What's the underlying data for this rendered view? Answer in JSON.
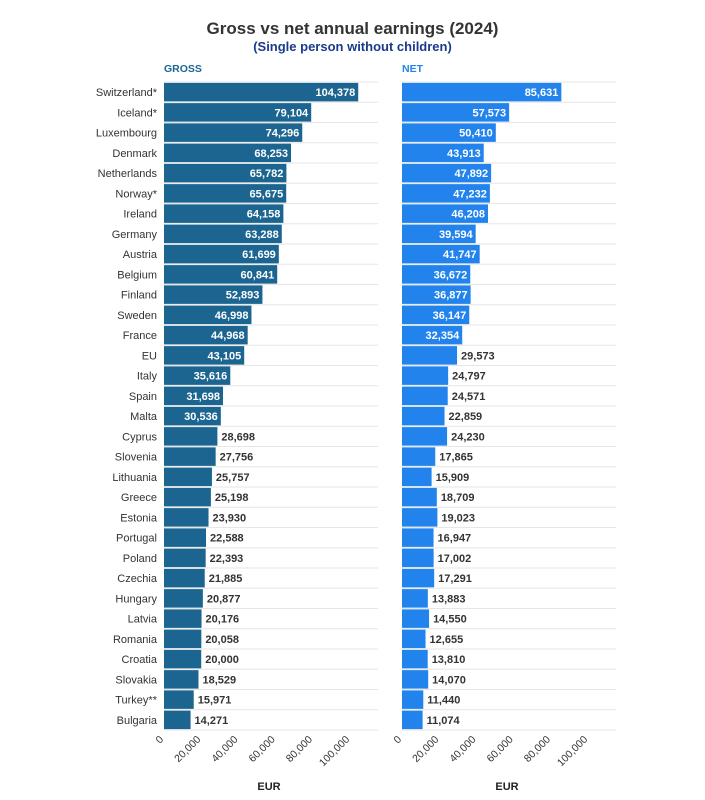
{
  "chart_data": {
    "type": "bar",
    "title": "Gross vs net annual earnings (2024)",
    "subtitle": "(Single person without children)",
    "categories": [
      "Switzerland*",
      "Iceland*",
      "Luxembourg",
      "Denmark",
      "Netherlands",
      "Norway*",
      "Ireland",
      "Germany",
      "Austria",
      "Belgium",
      "Finland",
      "Sweden",
      "France",
      "EU",
      "Italy",
      "Spain",
      "Malta",
      "Cyprus",
      "Slovenia",
      "Lithuania",
      "Greece",
      "Estonia",
      "Portugal",
      "Poland",
      "Czechia",
      "Hungary",
      "Latvia",
      "Romania",
      "Croatia",
      "Slovakia",
      "Turkey**",
      "Bulgaria"
    ],
    "panels": [
      {
        "name": "GROSS",
        "color": "#1b6590",
        "xlabel": "EUR",
        "xlim": [
          0,
          115000
        ],
        "ticks": [
          0,
          20000,
          40000,
          60000,
          80000,
          100000
        ],
        "tick_labels": [
          "0",
          "20,000",
          "40,000",
          "60,000",
          "80,000",
          "100,000"
        ],
        "values": [
          104378,
          79104,
          74296,
          68253,
          65782,
          65675,
          64158,
          63288,
          61699,
          60841,
          52893,
          46998,
          44968,
          43105,
          35616,
          31698,
          30536,
          28698,
          27756,
          25757,
          25198,
          23930,
          22588,
          22393,
          21885,
          20877,
          20176,
          20058,
          20000,
          18529,
          15971,
          14271
        ],
        "labels": [
          "104,378",
          "79,104",
          "74,296",
          "68,253",
          "65,782",
          "65,675",
          "64,158",
          "63,288",
          "61,699",
          "60,841",
          "52,893",
          "46,998",
          "44,968",
          "43,105",
          "35,616",
          "31,698",
          "30,536",
          "28,698",
          "27,756",
          "25,757",
          "25,198",
          "23,930",
          "22,588",
          "22,393",
          "21,885",
          "20,877",
          "20,176",
          "20,058",
          "20,000",
          "18,529",
          "15,971",
          "14,271"
        ]
      },
      {
        "name": "NET",
        "color": "#2283ec",
        "xlabel": "EUR",
        "xlim": [
          0,
          115000
        ],
        "ticks": [
          0,
          20000,
          40000,
          60000,
          80000,
          100000
        ],
        "tick_labels": [
          "0",
          "20,000",
          "40,000",
          "60,000",
          "80,000",
          "100,000"
        ],
        "values": [
          85631,
          57573,
          50410,
          43913,
          47892,
          47232,
          46208,
          39594,
          41747,
          36672,
          36877,
          36147,
          32354,
          29573,
          24797,
          24571,
          22859,
          24230,
          17865,
          15909,
          18709,
          19023,
          16947,
          17002,
          17291,
          13883,
          14550,
          12655,
          13810,
          14070,
          11440,
          11074
        ],
        "labels": [
          "85,631",
          "57,573",
          "50,410",
          "43,913",
          "47,892",
          "47,232",
          "46,208",
          "39,594",
          "41,747",
          "36,672",
          "36,877",
          "36,147",
          "32,354",
          "29,573",
          "24,797",
          "24,571",
          "22,859",
          "24,230",
          "17,865",
          "15,909",
          "18,709",
          "19,023",
          "16,947",
          "17,002",
          "17,291",
          "13,883",
          "14,550",
          "12,655",
          "13,810",
          "14,070",
          "11,440",
          "11,074"
        ]
      }
    ],
    "grid": true,
    "legend": "none"
  }
}
